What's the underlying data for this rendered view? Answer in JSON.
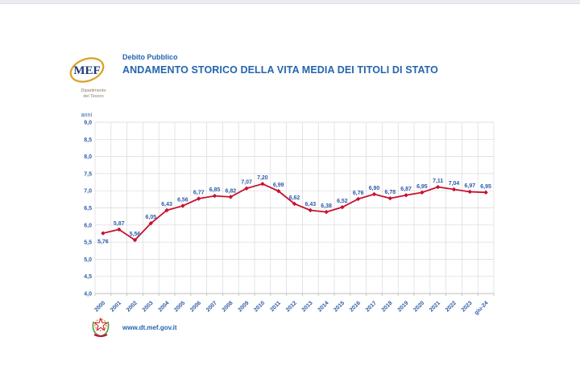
{
  "window": {
    "top_strip_color": "#EBEBF2"
  },
  "header": {
    "kicker": "Debito Pubblico",
    "title": "ANDAMENTO STORICO DELLA VITA MEDIA DEI TITOLI DI STATO",
    "logo": {
      "acronym": "MEF",
      "dept_line1": "Dipartimento",
      "dept_line2": "del Tesoro"
    }
  },
  "footer": {
    "url": "www.dt.mef.gov.it"
  },
  "colors": {
    "title_blue": "#2365AE",
    "chart_text_blue": "#2D5CA8",
    "line_red": "#C51230",
    "grid_gray": "#D9D9D9",
    "axis_gray": "#BFBFBF",
    "logo_gold": "#D9A024",
    "logo_navy": "#1E3A7B",
    "dept_brown": "#8C7B63"
  },
  "chart_data": {
    "type": "line",
    "title": "",
    "xlabel": "",
    "ylabel": "anni",
    "categories": [
      "2000",
      "2001",
      "2002",
      "2003",
      "2004",
      "2005",
      "2006",
      "2007",
      "2008",
      "2009",
      "2010",
      "2011",
      "2012",
      "2013",
      "2014",
      "2015",
      "2016",
      "2017",
      "2018",
      "2019",
      "2020",
      "2021",
      "2022",
      "2023",
      "giu-24"
    ],
    "values": [
      5.76,
      5.87,
      5.56,
      6.05,
      6.43,
      6.56,
      6.77,
      6.85,
      6.82,
      7.07,
      7.2,
      6.99,
      6.62,
      6.43,
      6.38,
      6.52,
      6.76,
      6.9,
      6.78,
      6.87,
      6.95,
      7.11,
      7.04,
      6.97,
      6.95
    ],
    "point_labels": [
      "5,76",
      "5,87",
      "5,56",
      "6,05",
      "6,43",
      "6,56",
      "6,77",
      "6,85",
      "6,82",
      "7,07",
      "7,20",
      "6,99",
      "6,62",
      "6,43",
      "6,38",
      "6,52",
      "6,76",
      "6,90",
      "6,78",
      "6,87",
      "6,95",
      "7,11",
      "7,04",
      "6,97",
      "6,95"
    ],
    "ylim": [
      4.0,
      9.0
    ],
    "ytick_step": 0.5,
    "ytick_labels": [
      "9,0",
      "8,5",
      "8,0",
      "7,5",
      "7,0",
      "6,5",
      "6,0",
      "5,5",
      "5,0",
      "4,5",
      "4,0"
    ],
    "grid": true,
    "legend": "none",
    "marker": "diamond"
  }
}
